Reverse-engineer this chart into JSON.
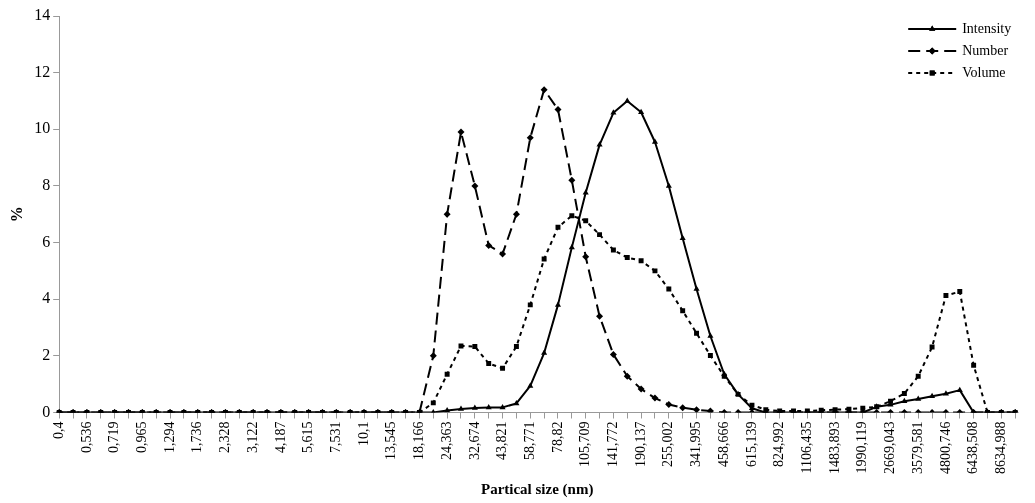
{
  "chart_data": {
    "type": "line",
    "xlabel": "Partical size (nm)",
    "ylabel": "%",
    "categories": [
      "0,4",
      null,
      "0,536",
      null,
      "0,719",
      null,
      "0,965",
      null,
      "1,294",
      null,
      "1,736",
      null,
      "2,328",
      null,
      "3,122",
      null,
      "4,187",
      null,
      "5,615",
      null,
      "7,531",
      null,
      "10,1",
      null,
      "13,545",
      null,
      "18,166",
      null,
      "24,363",
      null,
      "32,674",
      null,
      "43,821",
      null,
      "58,771",
      null,
      "78,82",
      null,
      "105,709",
      null,
      "141,772",
      null,
      "190,137",
      null,
      "255,002",
      null,
      "341,995",
      null,
      "458,666",
      null,
      "615,139",
      null,
      "824,992",
      null,
      "1106,435",
      null,
      "1483,893",
      null,
      "1990,119",
      null,
      "2669,043",
      null,
      "3579,581",
      null,
      "4800,746",
      null,
      "6438,508",
      null,
      "8634,988",
      null
    ],
    "series": [
      {
        "name": "Intensity",
        "color": "#000000",
        "marker": "triangle",
        "line_style": "solid",
        "values": [
          0,
          0,
          0,
          0,
          0,
          0,
          0,
          0,
          0,
          0,
          0,
          0,
          0,
          0,
          0,
          0,
          0,
          0,
          0,
          0,
          0,
          0,
          0,
          0,
          0,
          0,
          0,
          0,
          0.07,
          0.12,
          0.16,
          0.18,
          0.18,
          0.32,
          0.94,
          2.1,
          3.8,
          5.83,
          7.76,
          9.45,
          10.58,
          11.0,
          10.6,
          9.55,
          8.0,
          6.15,
          4.36,
          2.7,
          1.35,
          0.64,
          0.15,
          0,
          0,
          0,
          0,
          0,
          0,
          0,
          0,
          0.2,
          0.27,
          0.4,
          0.48,
          0.57,
          0.66,
          0.79,
          0,
          0,
          0,
          0
        ]
      },
      {
        "name": "Number",
        "color": "#000000",
        "marker": "diamond",
        "line_style": "dashed",
        "values": [
          0,
          0,
          0,
          0,
          0,
          0,
          0,
          0,
          0,
          0,
          0,
          0,
          0,
          0,
          0,
          0,
          0,
          0,
          0,
          0,
          0,
          0,
          0,
          0,
          0,
          0,
          0,
          2.0,
          7.0,
          9.9,
          8.0,
          5.9,
          5.6,
          7.0,
          9.7,
          11.4,
          10.7,
          8.2,
          5.5,
          3.4,
          2.05,
          1.28,
          0.83,
          0.51,
          0.28,
          0.17,
          0.1,
          0.05,
          0,
          0,
          0,
          0,
          0,
          0,
          0,
          0,
          0,
          0,
          0,
          0,
          0,
          0,
          0,
          0,
          0,
          0,
          0,
          0,
          0,
          0
        ]
      },
      {
        "name": "Volume",
        "color": "#000000",
        "marker": "square",
        "line_style": "dotted",
        "values": [
          0,
          0,
          0,
          0,
          0,
          0,
          0,
          0,
          0,
          0,
          0,
          0,
          0,
          0,
          0,
          0,
          0,
          0,
          0,
          0,
          0,
          0,
          0,
          0,
          0,
          0,
          0,
          0.34,
          1.35,
          2.35,
          2.33,
          1.73,
          1.56,
          2.33,
          3.8,
          5.42,
          6.54,
          6.95,
          6.77,
          6.28,
          5.74,
          5.47,
          5.36,
          5.0,
          4.36,
          3.59,
          2.8,
          2.01,
          1.28,
          0.64,
          0.26,
          0.1,
          0.05,
          0.05,
          0.05,
          0.08,
          0.1,
          0.12,
          0.15,
          0.2,
          0.4,
          0.67,
          1.28,
          2.31,
          4.13,
          4.27,
          1.67,
          0,
          0,
          0
        ]
      }
    ],
    "ylim": [
      0,
      14
    ],
    "yticks": [
      0,
      2,
      4,
      6,
      8,
      10,
      12,
      14
    ],
    "grid": false,
    "legend": "top right"
  }
}
